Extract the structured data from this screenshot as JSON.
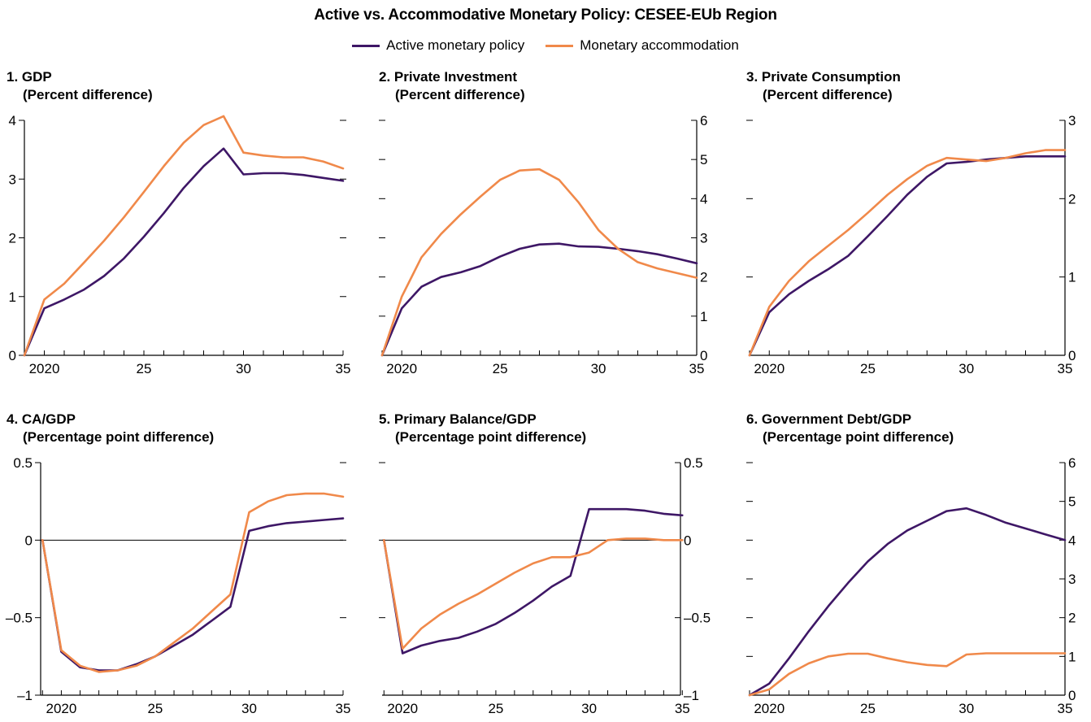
{
  "title": "Active vs. Accommodative Monetary Policy: CESEE-EUb Region",
  "legend": {
    "items": [
      {
        "label": "Active monetary policy",
        "color": "#3e1766"
      },
      {
        "label": "Monetary accommodation",
        "color": "#f0894a"
      }
    ]
  },
  "chart_data": [
    {
      "type": "line",
      "title": "1. GDP",
      "subtitle": "(Percent difference)",
      "x": [
        2019,
        2020,
        2021,
        2022,
        2023,
        2024,
        2025,
        2026,
        2027,
        2028,
        2029,
        2030,
        2031,
        2032,
        2033,
        2034,
        2035
      ],
      "xticks": [
        2020,
        2025,
        2030,
        2035
      ],
      "xtick_labels": [
        "2020",
        "25",
        "30",
        "35"
      ],
      "xlim": [
        2019,
        2035
      ],
      "ylim": [
        0,
        4
      ],
      "yticks": [
        0,
        1,
        2,
        3,
        4
      ],
      "ytick_labels": [
        "0",
        "1",
        "2",
        "3",
        "4"
      ],
      "y_axis_side": "left",
      "zero_line": false,
      "series": [
        {
          "name": "Active monetary policy",
          "values": [
            0,
            0.8,
            0.95,
            1.12,
            1.35,
            1.65,
            2.02,
            2.42,
            2.85,
            3.22,
            3.52,
            3.08,
            3.1,
            3.1,
            3.07,
            3.02,
            2.97
          ]
        },
        {
          "name": "Monetary accommodation",
          "values": [
            0,
            0.95,
            1.22,
            1.58,
            1.95,
            2.35,
            2.78,
            3.22,
            3.62,
            3.92,
            4.07,
            3.45,
            3.4,
            3.37,
            3.37,
            3.3,
            3.18
          ]
        }
      ]
    },
    {
      "type": "line",
      "title": "2. Private Investment",
      "subtitle": "(Percent difference)",
      "x": [
        2019,
        2020,
        2021,
        2022,
        2023,
        2024,
        2025,
        2026,
        2027,
        2028,
        2029,
        2030,
        2031,
        2032,
        2033,
        2034,
        2035
      ],
      "xticks": [
        2020,
        2025,
        2030,
        2035
      ],
      "xtick_labels": [
        "2020",
        "25",
        "30",
        "35"
      ],
      "xlim": [
        2019,
        2035
      ],
      "ylim": [
        0,
        6
      ],
      "yticks": [
        0,
        1,
        2,
        3,
        4,
        5,
        6
      ],
      "ytick_labels": [
        "0",
        "1",
        "2",
        "3",
        "4",
        "5",
        "6"
      ],
      "y_axis_side": "right",
      "zero_line": false,
      "series": [
        {
          "name": "Active monetary policy",
          "values": [
            0,
            1.2,
            1.75,
            2.0,
            2.12,
            2.28,
            2.52,
            2.72,
            2.83,
            2.85,
            2.78,
            2.77,
            2.72,
            2.66,
            2.58,
            2.47,
            2.35
          ]
        },
        {
          "name": "Monetary accommodation",
          "values": [
            0,
            1.5,
            2.5,
            3.1,
            3.6,
            4.05,
            4.48,
            4.72,
            4.75,
            4.48,
            3.9,
            3.2,
            2.72,
            2.38,
            2.22,
            2.1,
            1.98
          ]
        }
      ]
    },
    {
      "type": "line",
      "title": "3. Private Consumption",
      "subtitle": "(Percent difference)",
      "x": [
        2019,
        2020,
        2021,
        2022,
        2023,
        2024,
        2025,
        2026,
        2027,
        2028,
        2029,
        2030,
        2031,
        2032,
        2033,
        2034,
        2035
      ],
      "xticks": [
        2020,
        2025,
        2030,
        2035
      ],
      "xtick_labels": [
        "2020",
        "25",
        "30",
        "35"
      ],
      "xlim": [
        2019,
        2035
      ],
      "ylim": [
        0,
        3
      ],
      "yticks": [
        0,
        1,
        2,
        3
      ],
      "ytick_labels": [
        "0",
        "1",
        "2",
        "3"
      ],
      "y_axis_side": "right",
      "zero_line": false,
      "series": [
        {
          "name": "Active monetary policy",
          "values": [
            0,
            0.55,
            0.78,
            0.95,
            1.1,
            1.27,
            1.52,
            1.78,
            2.05,
            2.28,
            2.45,
            2.47,
            2.5,
            2.52,
            2.54,
            2.54,
            2.54
          ]
        },
        {
          "name": "Monetary accommodation",
          "values": [
            0,
            0.62,
            0.95,
            1.2,
            1.4,
            1.6,
            1.82,
            2.05,
            2.25,
            2.42,
            2.52,
            2.5,
            2.48,
            2.52,
            2.58,
            2.62,
            2.62
          ]
        }
      ]
    },
    {
      "type": "line",
      "title": "4. CA/GDP",
      "subtitle": "(Percentage point difference)",
      "x": [
        2019,
        2020,
        2021,
        2022,
        2023,
        2024,
        2025,
        2026,
        2027,
        2028,
        2029,
        2030,
        2031,
        2032,
        2033,
        2034,
        2035
      ],
      "xticks": [
        2020,
        2025,
        2030,
        2035
      ],
      "xtick_labels": [
        "2020",
        "25",
        "30",
        "35"
      ],
      "xlim": [
        2018.9,
        2035
      ],
      "ylim": [
        -1,
        0.5
      ],
      "yticks": [
        -1,
        -0.5,
        0,
        0.5
      ],
      "ytick_labels": [
        "–1",
        "–0.5",
        "0",
        "0.5"
      ],
      "y_axis_side": "left",
      "zero_line": true,
      "series": [
        {
          "name": "Active monetary policy",
          "values": [
            0,
            -0.72,
            -0.82,
            -0.84,
            -0.84,
            -0.8,
            -0.75,
            -0.68,
            -0.61,
            -0.52,
            -0.43,
            0.06,
            0.09,
            0.11,
            0.12,
            0.13,
            0.14
          ]
        },
        {
          "name": "Monetary accommodation",
          "values": [
            0,
            -0.71,
            -0.81,
            -0.85,
            -0.84,
            -0.81,
            -0.75,
            -0.66,
            -0.57,
            -0.46,
            -0.35,
            0.18,
            0.25,
            0.29,
            0.3,
            0.3,
            0.28
          ]
        }
      ]
    },
    {
      "type": "line",
      "title": "5. Primary Balance/GDP",
      "subtitle": "(Percentage point difference)",
      "x": [
        2019,
        2020,
        2021,
        2022,
        2023,
        2024,
        2025,
        2026,
        2027,
        2028,
        2029,
        2030,
        2031,
        2032,
        2033,
        2034,
        2035
      ],
      "xticks": [
        2020,
        2025,
        2030,
        2035
      ],
      "xtick_labels": [
        "2020",
        "25",
        "30",
        "35"
      ],
      "xlim": [
        2018.9,
        2034.9
      ],
      "ylim": [
        -1,
        0.5
      ],
      "yticks": [
        -1,
        -0.5,
        0,
        0.5
      ],
      "ytick_labels": [
        "–1",
        "–0.5",
        "0",
        "0.5"
      ],
      "y_axis_side": "right",
      "zero_line": true,
      "series": [
        {
          "name": "Active monetary policy",
          "values": [
            0,
            -0.73,
            -0.68,
            -0.65,
            -0.63,
            -0.59,
            -0.54,
            -0.47,
            -0.39,
            -0.3,
            -0.23,
            0.2,
            0.2,
            0.2,
            0.19,
            0.17,
            0.16
          ]
        },
        {
          "name": "Monetary accommodation",
          "values": [
            0,
            -0.7,
            -0.57,
            -0.48,
            -0.41,
            -0.35,
            -0.28,
            -0.21,
            -0.15,
            -0.11,
            -0.11,
            -0.08,
            0.0,
            0.01,
            0.01,
            0.0,
            0.0
          ]
        }
      ]
    },
    {
      "type": "line",
      "title": "6. Government Debt/GDP",
      "subtitle": "(Percentage point difference)",
      "x": [
        2019,
        2020,
        2021,
        2022,
        2023,
        2024,
        2025,
        2026,
        2027,
        2028,
        2029,
        2030,
        2031,
        2032,
        2033,
        2034,
        2035
      ],
      "xticks": [
        2020,
        2025,
        2030,
        2035
      ],
      "xtick_labels": [
        "2020",
        "25",
        "30",
        "35"
      ],
      "xlim": [
        2019,
        2035
      ],
      "ylim": [
        0,
        6
      ],
      "yticks": [
        0,
        1,
        2,
        3,
        4,
        5,
        6
      ],
      "ytick_labels": [
        "0",
        "1",
        "2",
        "3",
        "4",
        "5",
        "6"
      ],
      "y_axis_side": "right",
      "zero_line": false,
      "series": [
        {
          "name": "Active monetary policy",
          "values": [
            0,
            0.3,
            0.95,
            1.65,
            2.3,
            2.9,
            3.45,
            3.9,
            4.25,
            4.5,
            4.75,
            4.82,
            4.65,
            4.45,
            4.3,
            4.15,
            4.0
          ]
        },
        {
          "name": "Monetary accommodation",
          "values": [
            0,
            0.15,
            0.55,
            0.82,
            1.0,
            1.07,
            1.07,
            0.95,
            0.85,
            0.78,
            0.75,
            1.05,
            1.08,
            1.08,
            1.08,
            1.08,
            1.08
          ]
        }
      ]
    }
  ]
}
